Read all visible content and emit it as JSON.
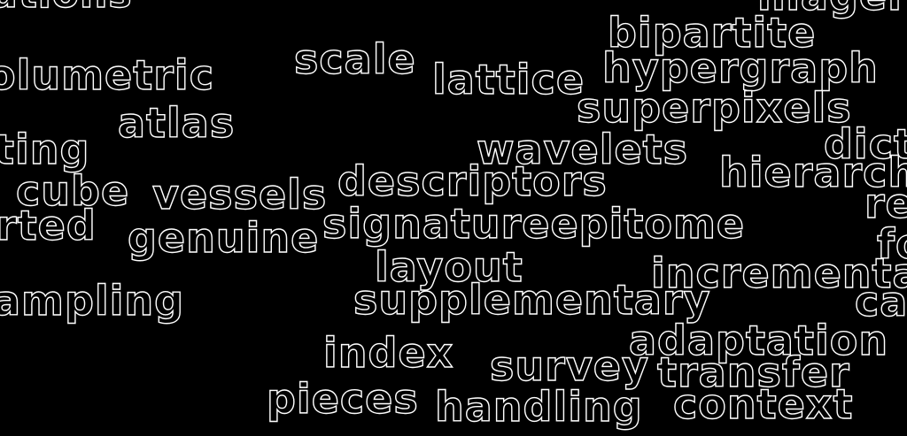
{
  "cloud": {
    "background": "#000000",
    "outline_color": "#ffffff",
    "words": [
      "ations",
      "mager",
      "bipartite",
      "scale",
      "lattice",
      "hypergraph",
      "olumetric",
      "superpixels",
      "atlas",
      "ting",
      "wavelets",
      "dict",
      "hierarch",
      "cube",
      "vessels",
      "descriptors",
      "re",
      "rted",
      "signatureepitome",
      "genuine",
      "fo",
      "layout",
      "incrementa",
      "ampling",
      "supplementary",
      "ca",
      "adaptation",
      "index",
      "survey",
      "transfer",
      "pieces",
      "handling",
      "context"
    ]
  }
}
